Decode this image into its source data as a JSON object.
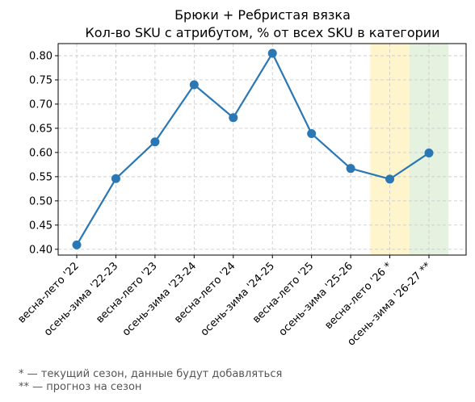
{
  "chart_data": {
    "type": "line",
    "title_lines": [
      "Брюки + Ребристая вязка",
      "Кол-во SKU с атрибутом, % от всех SKU в категории"
    ],
    "categories": [
      "весна-лето '22",
      "осень-зима '22-23",
      "весна-лето '23",
      "осень-зима '23-24",
      "весна-лето '24",
      "осень-зима '24-25",
      "весна-лето '25",
      "осень-зима '25-26",
      "весна-лето '26 *",
      "осень-зима '26-27 **"
    ],
    "values": [
      0.409,
      0.546,
      0.622,
      0.74,
      0.672,
      0.805,
      0.639,
      0.567,
      0.545,
      0.599
    ],
    "ylim": [
      0.388,
      0.825
    ],
    "yticks": [
      "0.40",
      "0.45",
      "0.50",
      "0.55",
      "0.60",
      "0.65",
      "0.70",
      "0.75",
      "0.80"
    ],
    "grid": true,
    "line_color": "#2a77b4",
    "highlights": [
      {
        "category_index": 8,
        "color": "#fff5cc"
      },
      {
        "category_index": 9,
        "color": "#e5f2e0"
      }
    ]
  },
  "footnotes": {
    "current": "* — текущий сезон, данные будут добавляться",
    "forecast": "** — прогноз на сезон"
  }
}
